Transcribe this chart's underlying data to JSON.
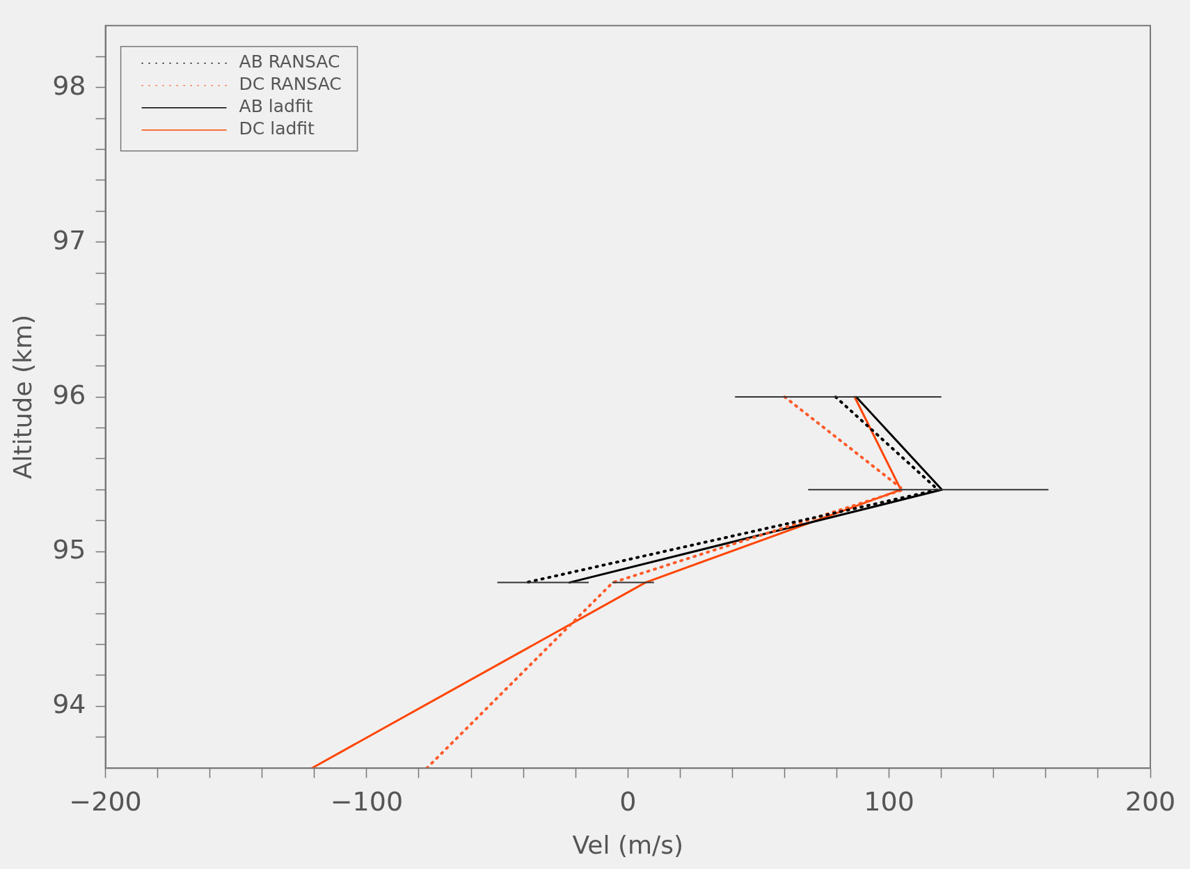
{
  "chart_data": {
    "type": "line",
    "xlabel": "Vel (m/s)",
    "ylabel": "Altitude (km)",
    "xlim": [
      -200,
      200
    ],
    "ylim": [
      93.6,
      98.4
    ],
    "xticks": [
      -200,
      {
        "value": -180,
        "label": null
      },
      {
        "value": -160,
        "label": null
      },
      {
        "value": -140,
        "label": null
      },
      {
        "value": -120,
        "label": null
      },
      -100,
      {
        "value": -80,
        "label": null
      },
      {
        "value": -60,
        "label": null
      },
      {
        "value": -40,
        "label": null
      },
      {
        "value": -20,
        "label": null
      },
      0,
      {
        "value": 20,
        "label": null
      },
      {
        "value": 40,
        "label": null
      },
      {
        "value": 60,
        "label": null
      },
      {
        "value": 80,
        "label": null
      },
      100,
      {
        "value": 120,
        "label": null
      },
      {
        "value": 140,
        "label": null
      },
      {
        "value": 160,
        "label": null
      },
      {
        "value": 180,
        "label": null
      },
      200
    ],
    "yticks": [
      {
        "value": 93.8,
        "label": null
      },
      94,
      {
        "value": 94.2,
        "label": null
      },
      {
        "value": 94.4,
        "label": null
      },
      {
        "value": 94.6,
        "label": null
      },
      {
        "value": 94.8,
        "label": null
      },
      95,
      {
        "value": 95.2,
        "label": null
      },
      {
        "value": 95.4,
        "label": null
      },
      {
        "value": 95.6,
        "label": null
      },
      {
        "value": 95.8,
        "label": null
      },
      96,
      {
        "value": 96.2,
        "label": null
      },
      {
        "value": 96.4,
        "label": null
      },
      {
        "value": 96.6,
        "label": null
      },
      {
        "value": 96.8,
        "label": null
      },
      97,
      {
        "value": 97.2,
        "label": null
      },
      {
        "value": 97.4,
        "label": null
      },
      {
        "value": 97.6,
        "label": null
      },
      {
        "value": 97.8,
        "label": null
      },
      98,
      {
        "value": 98.2,
        "label": null
      }
    ],
    "legend": "top left",
    "grid": false,
    "series": [
      {
        "name": "AB RANSAC",
        "color": "#000000",
        "line_style": "dotted",
        "x": [
          79.5,
          118.7,
          -38.9
        ],
        "values": [
          96,
          95.4,
          94.8
        ],
        "xerrors": [
          [
            41,
            120
          ],
          [
            69,
            161
          ],
          [
            -50,
            -15
          ]
        ]
      },
      {
        "name": "DC RANSAC",
        "color": "#ff5a28",
        "line_style": "dotted",
        "x": [
          60,
          105.4,
          -5.8,
          -77
        ],
        "values": [
          96,
          95.4,
          94.8,
          93.6
        ]
      },
      {
        "name": "AB ladfit",
        "color": "#000000",
        "line_style": "solid",
        "x": [
          87.4,
          120.2,
          -22.4
        ],
        "values": [
          96,
          95.4,
          94.8
        ]
      },
      {
        "name": "DC ladfit",
        "color": "#ff4500",
        "line_style": "solid",
        "x": [
          86.8,
          104.5,
          6.7,
          -121
        ],
        "values": [
          96,
          95.4,
          94.8,
          93.6
        ],
        "xerrors": [
          null,
          null,
          [
            -6,
            10
          ],
          null
        ]
      }
    ]
  }
}
